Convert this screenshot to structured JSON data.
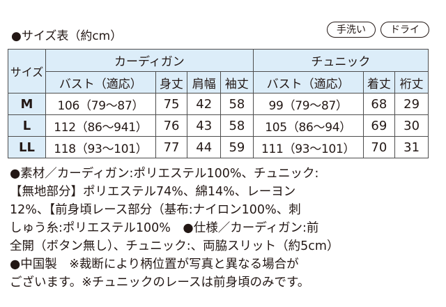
{
  "header": {
    "title": "●サイズ表（約cm）",
    "badges": [
      "手洗い",
      "ドライ"
    ]
  },
  "table": {
    "size_header": "サイズ",
    "groups": [
      "カーディガン",
      "チュニック"
    ],
    "columns": [
      "バスト（適応）",
      "身丈",
      "肩幅",
      "袖丈",
      "バスト（適応）",
      "着丈",
      "裄丈"
    ],
    "rows": [
      {
        "size": "M",
        "cells": [
          "106（79～87）",
          "75",
          "42",
          "58",
          "99（79～87）",
          "68",
          "29"
        ]
      },
      {
        "size": "L",
        "cells": [
          "112（86～941）",
          "76",
          "43",
          "58",
          "105（86～94）",
          "69",
          "30"
        ]
      },
      {
        "size": "LL",
        "cells": [
          "118（93～101）",
          "77",
          "44",
          "59",
          "111（93～101）",
          "70",
          "31"
        ]
      }
    ]
  },
  "notes": [
    "●素材／カーディガン:ポリエステル100%、チュニック:",
    "【無地部分】ポリエステル74%、綿14%、レーヨン",
    "12%、【前身頃レース部分（基布:ナイロン100%、刺",
    "しゅう糸:ポリエステル100%　●仕様／カーディガン:前",
    "全開（ボタン無し）、チュニック:、両脇スリット（約5cm）",
    "●中国製　※裁断により柄位置が写真と異なる場合が",
    "ございます。※チュニックのレースは前身頃のみです。"
  ],
  "colors": {
    "header_bg": "#dcedf9",
    "border": "#4d4d4d",
    "text": "#231815"
  }
}
